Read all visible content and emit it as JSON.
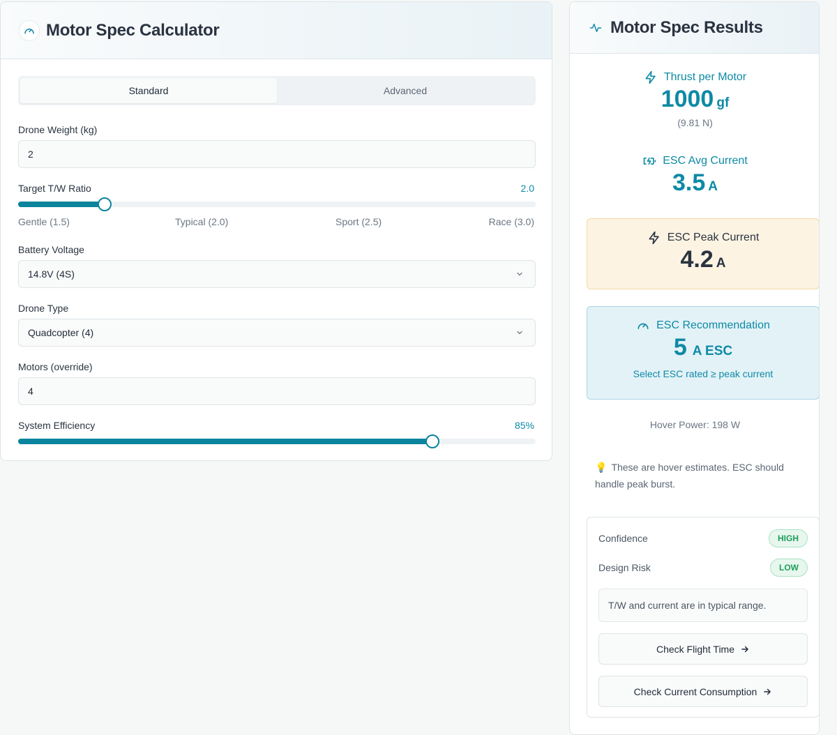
{
  "calculator": {
    "title": "Motor Spec Calculator",
    "tabs": [
      {
        "label": "Standard",
        "active": true
      },
      {
        "label": "Advanced",
        "active": false
      }
    ],
    "drone_weight": {
      "label": "Drone Weight (kg)",
      "value": "2"
    },
    "tw_ratio": {
      "label": "Target T/W Ratio",
      "value_text": "2.0",
      "value": 2.0,
      "min": 1.5,
      "max": 3.0,
      "ticks": [
        "Gentle (1.5)",
        "Typical (2.0)",
        "Sport (2.5)",
        "Race (3.0)"
      ]
    },
    "battery_voltage": {
      "label": "Battery Voltage",
      "value": "14.8V (4S)"
    },
    "drone_type": {
      "label": "Drone Type",
      "value": "Quadcopter (4)"
    },
    "motors": {
      "label": "Motors (override)",
      "value": "4"
    },
    "efficiency": {
      "label": "System Efficiency",
      "value_text": "85%",
      "percent": 80
    }
  },
  "results": {
    "title": "Motor Spec Results",
    "thrust": {
      "label": "Thrust per Motor",
      "value": "1000",
      "unit": "gf",
      "sub": "(9.81 N)"
    },
    "esc_avg": {
      "label": "ESC Avg Current",
      "value": "3.5",
      "unit": "A"
    },
    "esc_peak": {
      "label": "ESC Peak Current",
      "value": "4.2",
      "unit": "A"
    },
    "esc_rec": {
      "label": "ESC Recommendation",
      "value": "5",
      "unit": "A ESC",
      "sub": "Select ESC rated ≥ peak current"
    },
    "hover_power": "Hover Power: 198 W",
    "note": "These are hover estimates. ESC should handle peak burst.",
    "confidence": {
      "label": "Confidence",
      "badge": "HIGH"
    },
    "design_risk": {
      "label": "Design Risk",
      "badge": "LOW"
    },
    "message": "T/W and current are in typical range.",
    "buttons": [
      "Check Flight Time",
      "Check Current Consumption"
    ]
  },
  "colors": {
    "accent": "#0b849d",
    "accent_text": "#0d8aa5",
    "peak_bg": "#fdf3e3",
    "rec_bg": "#e3f2f7",
    "badge_green": "#1e9e5a"
  },
  "icons": {
    "calculator": "gauge-icon",
    "results": "activity-icon",
    "thrust": "lightning-icon",
    "avg": "battery-charging-icon",
    "peak": "lightning-icon",
    "rec": "gauge-icon",
    "note": "lightbulb-icon",
    "button": "arrow-right-icon",
    "select": "chevron-down-icon"
  }
}
